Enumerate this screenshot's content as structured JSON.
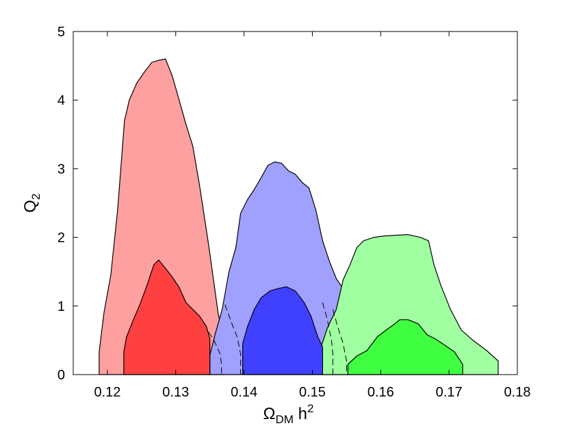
{
  "chart_data": {
    "type": "area",
    "title": "",
    "xlabel": {
      "main": "Ω",
      "sub": "DM",
      "rest": " h",
      "sup": "2"
    },
    "ylabel": {
      "main": "Q",
      "sub": "2"
    },
    "xlim": [
      0.115,
      0.18
    ],
    "ylim": [
      0,
      5
    ],
    "xticks": [
      0.12,
      0.13,
      0.14,
      0.15,
      0.16,
      0.17,
      0.18
    ],
    "xtick_labels": [
      "0.12",
      "0.13",
      "0.14",
      "0.15",
      "0.16",
      "0.17",
      "0.18"
    ],
    "yticks": [
      0,
      1,
      2,
      3,
      4,
      5
    ],
    "ytick_labels": [
      "0",
      "1",
      "2",
      "3",
      "4",
      "5"
    ],
    "grid": false,
    "series": [
      {
        "color_outer": "#ffa0a0",
        "color_inner": "#ff4040",
        "outer": [
          [
            0.1188,
            0
          ],
          [
            0.1188,
            0.33
          ],
          [
            0.1195,
            0.9
          ],
          [
            0.1205,
            1.45
          ],
          [
            0.1215,
            2.4
          ],
          [
            0.1225,
            3.7
          ],
          [
            0.1232,
            4.0
          ],
          [
            0.1243,
            4.25
          ],
          [
            0.1255,
            4.42
          ],
          [
            0.1265,
            4.55
          ],
          [
            0.1275,
            4.58
          ],
          [
            0.1285,
            4.6
          ],
          [
            0.1295,
            4.35
          ],
          [
            0.1305,
            4.0
          ],
          [
            0.1315,
            3.65
          ],
          [
            0.1325,
            3.33
          ],
          [
            0.1335,
            2.75
          ],
          [
            0.1348,
            1.9
          ],
          [
            0.1355,
            1.4
          ],
          [
            0.1362,
            0.9
          ],
          [
            0.1368,
            0.6
          ],
          [
            0.1372,
            0.3
          ],
          [
            0.1372,
            0
          ]
        ],
        "inner": [
          [
            0.1224,
            0
          ],
          [
            0.1224,
            0.33
          ],
          [
            0.1228,
            0.55
          ],
          [
            0.1238,
            0.8
          ],
          [
            0.1248,
            1.03
          ],
          [
            0.1258,
            1.3
          ],
          [
            0.1268,
            1.6
          ],
          [
            0.1275,
            1.67
          ],
          [
            0.1285,
            1.55
          ],
          [
            0.1295,
            1.42
          ],
          [
            0.1305,
            1.27
          ],
          [
            0.1315,
            1.05
          ],
          [
            0.1325,
            0.95
          ],
          [
            0.1335,
            0.85
          ],
          [
            0.1345,
            0.7
          ],
          [
            0.135,
            0.52
          ],
          [
            0.135,
            0
          ]
        ],
        "dashed_edge": [
          [
            0.1348,
            0.62
          ],
          [
            0.1356,
            0.5
          ],
          [
            0.1365,
            0.3
          ],
          [
            0.1367,
            0.15
          ],
          [
            0.1367,
            0
          ]
        ]
      },
      {
        "color_outer": "#a0a0ff",
        "color_inner": "#4040ff",
        "outer": [
          [
            0.135,
            0
          ],
          [
            0.135,
            0.28
          ],
          [
            0.1358,
            0.6
          ],
          [
            0.1368,
            0.95
          ],
          [
            0.1378,
            1.5
          ],
          [
            0.1388,
            1.85
          ],
          [
            0.1395,
            2.35
          ],
          [
            0.1405,
            2.55
          ],
          [
            0.1415,
            2.7
          ],
          [
            0.1425,
            2.87
          ],
          [
            0.1435,
            3.05
          ],
          [
            0.1445,
            3.1
          ],
          [
            0.1455,
            3.08
          ],
          [
            0.1465,
            2.97
          ],
          [
            0.1475,
            2.92
          ],
          [
            0.1485,
            2.8
          ],
          [
            0.1495,
            2.72
          ],
          [
            0.1505,
            2.4
          ],
          [
            0.1515,
            1.95
          ],
          [
            0.1525,
            1.65
          ],
          [
            0.1535,
            1.4
          ],
          [
            0.1545,
            1.25
          ],
          [
            0.1552,
            0.95
          ],
          [
            0.1555,
            0.6
          ],
          [
            0.1555,
            0
          ]
        ],
        "inner": [
          [
            0.1398,
            0
          ],
          [
            0.1398,
            0.45
          ],
          [
            0.1405,
            0.7
          ],
          [
            0.1415,
            0.95
          ],
          [
            0.1425,
            1.12
          ],
          [
            0.1438,
            1.22
          ],
          [
            0.1448,
            1.25
          ],
          [
            0.1462,
            1.28
          ],
          [
            0.1475,
            1.22
          ],
          [
            0.1488,
            1.05
          ],
          [
            0.1498,
            0.85
          ],
          [
            0.1508,
            0.55
          ],
          [
            0.1515,
            0.4
          ],
          [
            0.1515,
            0
          ]
        ],
        "dashed_edge": [
          [
            0.1372,
            1.02
          ],
          [
            0.1382,
            0.75
          ],
          [
            0.139,
            0.55
          ],
          [
            0.1395,
            0.3
          ],
          [
            0.1395,
            0
          ]
        ]
      },
      {
        "color_outer": "#a0ffa0",
        "color_inner": "#40ff40",
        "outer": [
          [
            0.1512,
            0
          ],
          [
            0.1512,
            0.38
          ],
          [
            0.1522,
            0.68
          ],
          [
            0.1535,
            0.95
          ],
          [
            0.1545,
            1.38
          ],
          [
            0.1555,
            1.6
          ],
          [
            0.1565,
            1.85
          ],
          [
            0.1575,
            1.95
          ],
          [
            0.159,
            2.0
          ],
          [
            0.1605,
            2.02
          ],
          [
            0.162,
            2.03
          ],
          [
            0.164,
            2.04
          ],
          [
            0.1658,
            2.0
          ],
          [
            0.167,
            1.95
          ],
          [
            0.1678,
            1.6
          ],
          [
            0.1688,
            1.3
          ],
          [
            0.1702,
            0.95
          ],
          [
            0.1718,
            0.65
          ],
          [
            0.1735,
            0.5
          ],
          [
            0.1755,
            0.35
          ],
          [
            0.1772,
            0.2
          ],
          [
            0.1772,
            0
          ]
        ],
        "inner": [
          [
            0.1552,
            0
          ],
          [
            0.1552,
            0.15
          ],
          [
            0.1565,
            0.27
          ],
          [
            0.158,
            0.35
          ],
          [
            0.1595,
            0.55
          ],
          [
            0.1608,
            0.65
          ],
          [
            0.1618,
            0.72
          ],
          [
            0.1628,
            0.8
          ],
          [
            0.164,
            0.8
          ],
          [
            0.1655,
            0.74
          ],
          [
            0.1668,
            0.58
          ],
          [
            0.168,
            0.52
          ],
          [
            0.1695,
            0.42
          ],
          [
            0.1708,
            0.33
          ],
          [
            0.172,
            0.15
          ],
          [
            0.172,
            0
          ]
        ],
        "dashed_edge": [
          [
            0.1515,
            1.05
          ],
          [
            0.1522,
            0.8
          ],
          [
            0.1528,
            0.5
          ],
          [
            0.153,
            0.3
          ],
          [
            0.153,
            0
          ]
        ]
      }
    ],
    "extra_dashed": [
      [
        [
          0.153,
          0.95
        ],
        [
          0.1537,
          0.7
        ],
        [
          0.1545,
          0.45
        ],
        [
          0.155,
          0.2
        ],
        [
          0.155,
          0
        ]
      ]
    ]
  }
}
